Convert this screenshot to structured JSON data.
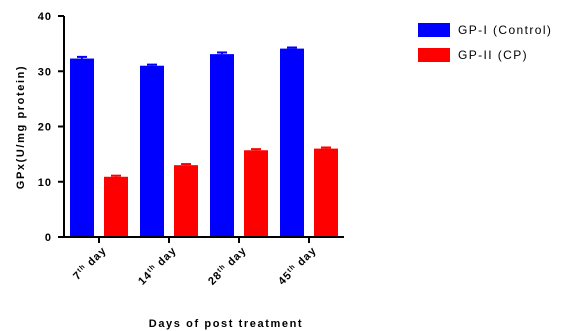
{
  "chart_data": {
    "type": "bar",
    "categories": [
      {
        "base": "7",
        "sup": "th",
        "rest": " day"
      },
      {
        "base": "14",
        "sup": "th",
        "rest": " day"
      },
      {
        "base": "28",
        "sup": "th",
        "rest": " day"
      },
      {
        "base": "45",
        "sup": "th",
        "rest": " day"
      }
    ],
    "series": [
      {
        "name": "GP-I (Control)",
        "color": "#0000ff",
        "values": [
          32.3,
          31.0,
          33.1,
          34.1
        ],
        "errors": [
          0.3,
          0.2,
          0.3,
          0.2
        ]
      },
      {
        "name": "GP-II (CP)",
        "color": "#ff0000",
        "values": [
          10.9,
          13.0,
          15.7,
          16.0
        ],
        "errors": [
          0.2,
          0.2,
          0.2,
          0.2
        ]
      }
    ],
    "xlabel": "Days of post treatment",
    "ylabel": "GPx(U/mg protein)",
    "ylim": [
      0,
      40
    ],
    "yticks": [
      0,
      10,
      20,
      30,
      40
    ],
    "grid": false,
    "legend_position": "top-right"
  }
}
